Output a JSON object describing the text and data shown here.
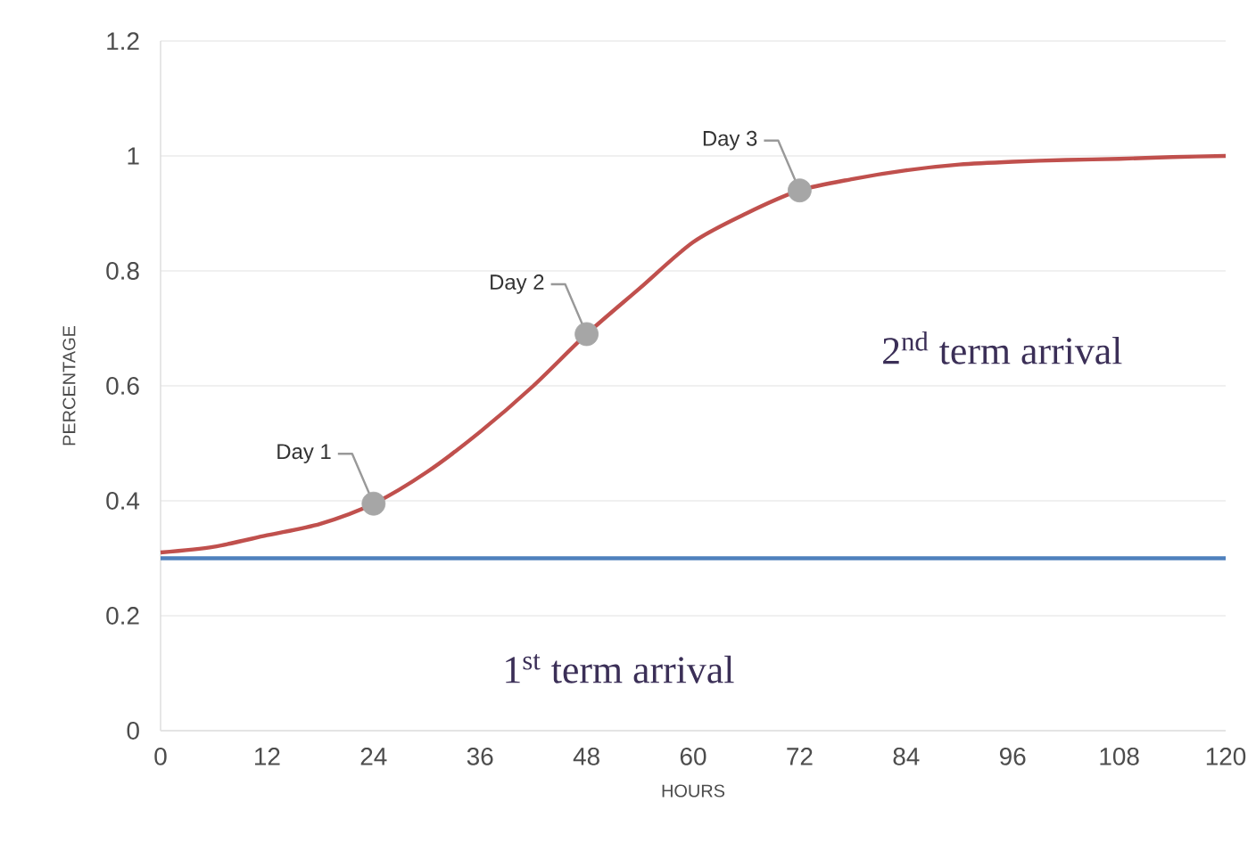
{
  "chart_data": {
    "type": "line",
    "xlabel": "HOURS",
    "ylabel": "PERCENTAGE",
    "xlim": [
      0,
      120
    ],
    "xticks": [
      0,
      12,
      24,
      36,
      48,
      60,
      72,
      84,
      96,
      108,
      120
    ],
    "ylim": [
      0,
      1.2
    ],
    "yticks": [
      0,
      0.2,
      0.4,
      0.6,
      0.8,
      1,
      1.2
    ],
    "grid": "y",
    "line_style": "solid",
    "series": [
      {
        "color": "#c0504d",
        "x": [
          0,
          6,
          12,
          18,
          24,
          30,
          36,
          42,
          48,
          54,
          60,
          66,
          72,
          78,
          84,
          90,
          96,
          102,
          108,
          114,
          120
        ],
        "values": [
          0.31,
          0.32,
          0.34,
          0.36,
          0.395,
          0.45,
          0.52,
          0.6,
          0.69,
          0.77,
          0.85,
          0.9,
          0.94,
          0.96,
          0.975,
          0.985,
          0.99,
          0.993,
          0.995,
          0.998,
          1.0
        ]
      },
      {
        "color": "#4f81bd",
        "x": [
          0,
          120
        ],
        "values": [
          0.3,
          0.3
        ]
      },
      {
        "type": "scatter",
        "color": "#a6a6a6",
        "marker": "circle",
        "x": [
          24,
          48,
          72
        ],
        "values": [
          0.395,
          0.69,
          0.94
        ]
      }
    ],
    "annotations": [
      {
        "text": "Day 1",
        "x": 24,
        "y": 0.395
      },
      {
        "text": "Day 2",
        "x": 48,
        "y": 0.69
      },
      {
        "text": "Day 3",
        "x": 72,
        "y": 0.94
      },
      "1$^{st}$ term arrival",
      "2$^{nd}$ term arrival"
    ]
  }
}
